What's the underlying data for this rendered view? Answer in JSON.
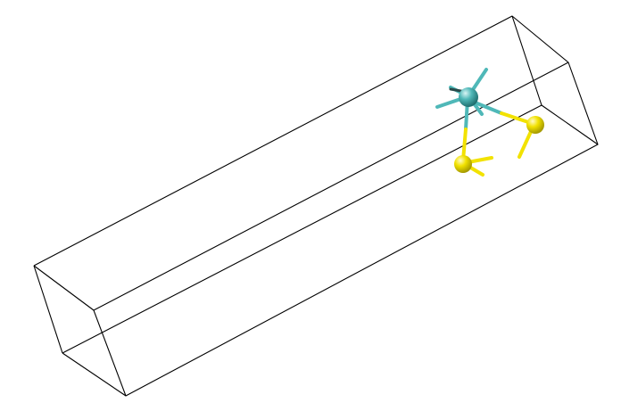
{
  "scene": {
    "background_color": "#ffffff",
    "cell_edge_color": "#000000",
    "atoms": [
      {
        "element": "Si",
        "color": "#4fb8b8",
        "role": "central"
      },
      {
        "element": "S",
        "color": "#f2e200",
        "role": "ligand"
      },
      {
        "element": "S",
        "color": "#f2e200",
        "role": "ligand"
      }
    ],
    "bonds": [
      {
        "from": 0,
        "to": 1,
        "colors": [
          "#4fb8b8",
          "#f2e200"
        ]
      },
      {
        "from": 0,
        "to": 2,
        "colors": [
          "#4fb8b8",
          "#f2e200"
        ]
      }
    ]
  }
}
